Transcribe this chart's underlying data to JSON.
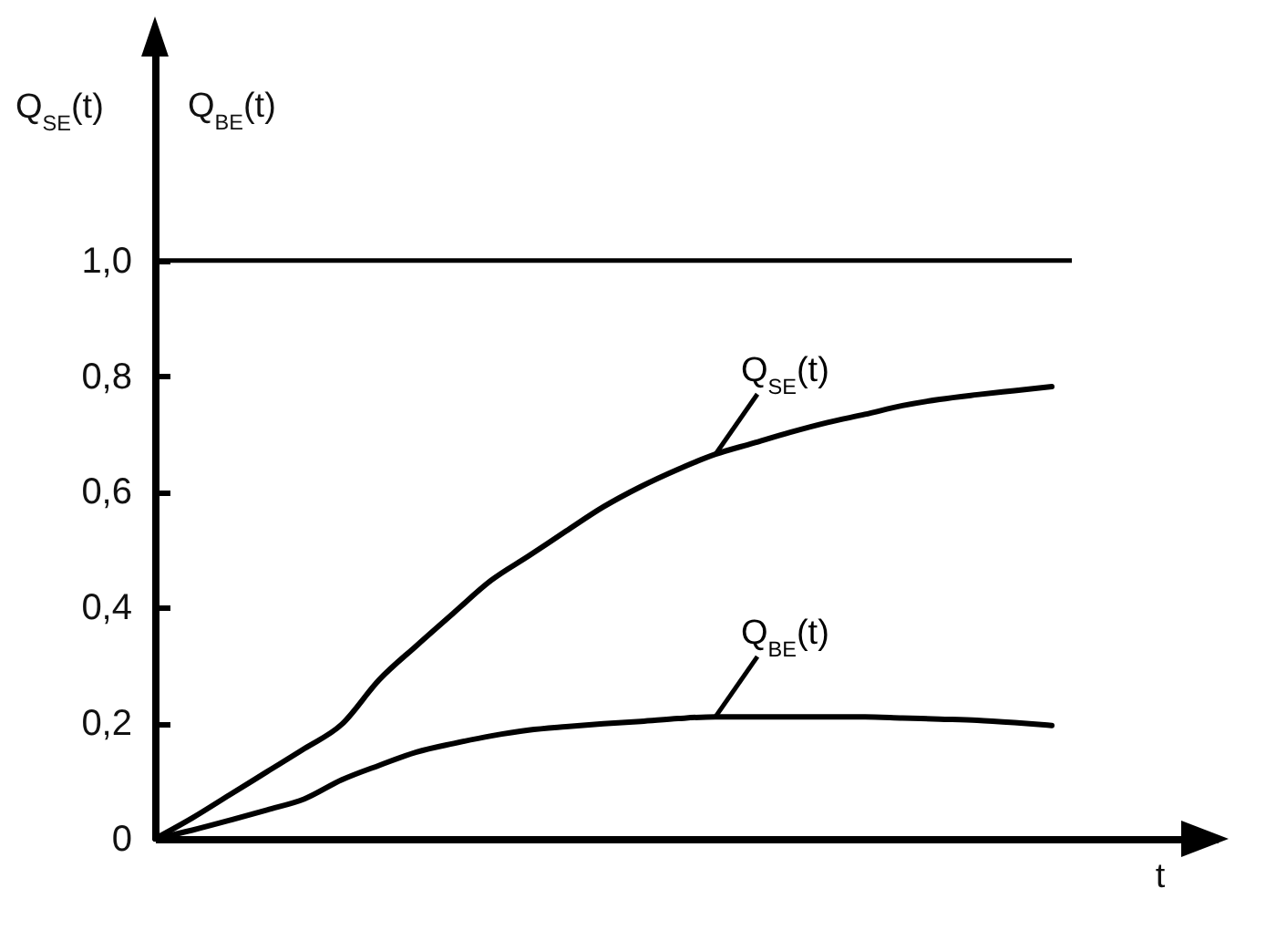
{
  "chart_data": {
    "type": "line",
    "xlabel": "t",
    "ylabel": "Q$_{SE}$(t)",
    "annotations": [
      "Q$_{BE}$(t)"
    ],
    "categories": [
      null,
      null,
      null,
      null,
      null,
      null,
      null,
      null,
      null,
      null,
      null,
      null,
      null,
      null,
      null,
      null,
      null,
      null,
      null,
      null,
      null,
      null,
      null,
      null,
      null
    ],
    "series": [
      {
        "name": "Q$_{SE}$(t)",
        "color": "#000000",
        "values": [
          0,
          0.036,
          0.076,
          0.116,
          0.156,
          0.198,
          0.275,
          0.334,
          0.391,
          0.447,
          0.489,
          0.532,
          0.574,
          0.609,
          0.639,
          0.665,
          0.684,
          0.703,
          0.72,
          0.734,
          0.749,
          0.76,
          0.768,
          0.775,
          0.782
        ]
      },
      {
        "name": "Q$_{BE}$(t)",
        "color": "#000000",
        "values": [
          0,
          0.015,
          0.032,
          0.05,
          0.069,
          0.102,
          0.127,
          0.15,
          0.165,
          0.178,
          0.188,
          0.194,
          0.199,
          0.203,
          0.208,
          0.211,
          0.211,
          0.211,
          0.211,
          0.211,
          0.209,
          0.207,
          0.205,
          0.201,
          0.196
        ]
      }
    ],
    "ylim": [
      0,
      1.4
    ],
    "yticks": [
      0,
      {
        "value": 0.2,
        "label": "0,2"
      },
      {
        "value": 0.4,
        "label": "0,4"
      },
      {
        "value": 0.6,
        "label": "0,6"
      },
      {
        "value": 0.8,
        "label": "0,8"
      },
      {
        "value": 1,
        "label": "1,0"
      }
    ],
    "ref_lines": [
      {
        "axis": "y",
        "value": 1,
        "color": "#000000"
      }
    ],
    "grid": false,
    "legend": false,
    "marker": "none",
    "line_style": "solid",
    "tick_labels": "y"
  }
}
